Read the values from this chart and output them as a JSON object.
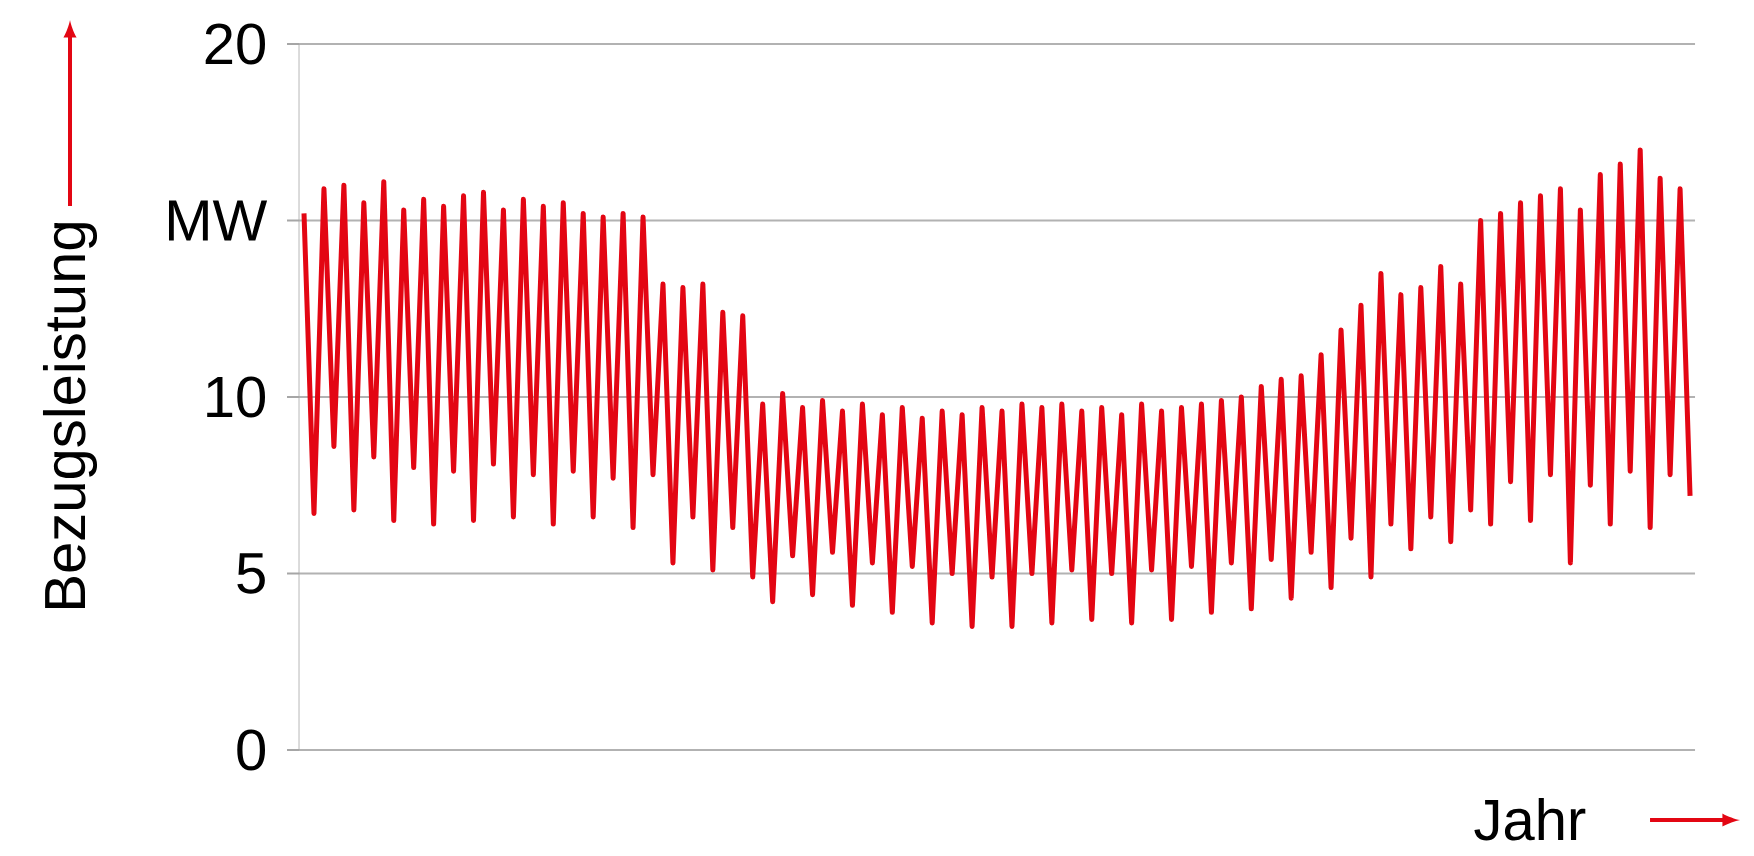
{
  "chart_data": {
    "type": "line",
    "xlabel": "Jahr",
    "ylabel": "Bezugsleistung",
    "categories": [
      null,
      null,
      null,
      null,
      null,
      null,
      null,
      null,
      null,
      null,
      null,
      null,
      null,
      null,
      null,
      null,
      null,
      null,
      null,
      null,
      null,
      null,
      null,
      null,
      null,
      null,
      null,
      null,
      null,
      null,
      null,
      null,
      null,
      null,
      null,
      null,
      null,
      null,
      null,
      null,
      null,
      null,
      null,
      null,
      null,
      null,
      null,
      null,
      null,
      null,
      null,
      null,
      null,
      null,
      null,
      null,
      null,
      null,
      null,
      null,
      null,
      null,
      null,
      null,
      null,
      null,
      null,
      null,
      null,
      null,
      null,
      null,
      null,
      null,
      null,
      null,
      null,
      null,
      null,
      null,
      null,
      null,
      null,
      null,
      null,
      null,
      null,
      null,
      null,
      null,
      null,
      null,
      null,
      null,
      null,
      null,
      null,
      null,
      null,
      null,
      null,
      null,
      null,
      null,
      null,
      null,
      null,
      null,
      null,
      null,
      null,
      null,
      null,
      null,
      null,
      null,
      null,
      null,
      null,
      null,
      null,
      null,
      null,
      null,
      null,
      null,
      null,
      null,
      null,
      null,
      null,
      null,
      null,
      null,
      null,
      null,
      null,
      null,
      null,
      null
    ],
    "values": [
      15.2,
      6.7,
      15.9,
      8.6,
      16.0,
      6.8,
      15.5,
      8.3,
      16.1,
      6.5,
      15.3,
      8.0,
      15.6,
      6.4,
      15.4,
      7.9,
      15.7,
      6.5,
      15.8,
      8.1,
      15.3,
      6.6,
      15.6,
      7.8,
      15.4,
      6.4,
      15.5,
      7.9,
      15.2,
      6.6,
      15.1,
      7.7,
      15.2,
      6.3,
      15.1,
      7.8,
      13.2,
      5.3,
      13.1,
      6.6,
      13.2,
      5.1,
      12.4,
      6.3,
      12.3,
      4.9,
      9.8,
      4.2,
      10.1,
      5.5,
      9.7,
      4.4,
      9.9,
      5.6,
      9.6,
      4.1,
      9.8,
      5.3,
      9.5,
      3.9,
      9.7,
      5.2,
      9.4,
      3.6,
      9.6,
      5.0,
      9.5,
      3.5,
      9.7,
      4.9,
      9.6,
      3.5,
      9.8,
      5.0,
      9.7,
      3.6,
      9.8,
      5.1,
      9.6,
      3.7,
      9.7,
      5.0,
      9.5,
      3.6,
      9.8,
      5.1,
      9.6,
      3.7,
      9.7,
      5.2,
      9.8,
      3.9,
      9.9,
      5.3,
      10.0,
      4.0,
      10.3,
      5.4,
      10.5,
      4.3,
      10.6,
      5.6,
      11.2,
      4.6,
      11.9,
      6.0,
      12.6,
      4.9,
      13.5,
      6.4,
      12.9,
      5.7,
      13.1,
      6.6,
      13.7,
      5.9,
      13.2,
      6.8,
      15.0,
      6.4,
      15.2,
      7.6,
      15.5,
      6.5,
      15.7,
      7.8,
      15.9,
      5.3,
      15.3,
      7.5,
      16.3,
      6.4,
      16.6,
      7.9,
      17.0,
      6.3,
      16.2,
      7.8,
      15.9,
      7.2
    ],
    "color": "#e30613",
    "ylim": [
      0,
      20
    ],
    "yticks": [
      0,
      5,
      10,
      {
        "value": 15,
        "label": "MW"
      },
      20
    ],
    "grid": "y"
  }
}
